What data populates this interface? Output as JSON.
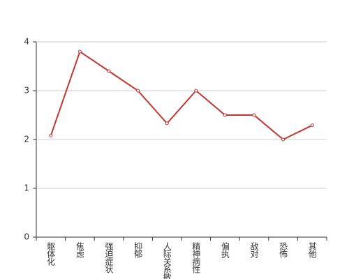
{
  "chart_data": {
    "type": "line",
    "categories": [
      "躯体化",
      "焦虑",
      "强迫症状",
      "抑郁",
      "人际关系敏感",
      "精神病性",
      "偏执",
      "敌对",
      "恐怖",
      "其他"
    ],
    "series": [
      {
        "color": "#c23531",
        "values": [
          2.08,
          3.8,
          3.4,
          3.0,
          2.33,
          3.0,
          2.5,
          2.5,
          2.0,
          2.29
        ]
      }
    ],
    "ylim": [
      0,
      4
    ],
    "yticks": [
      0,
      1,
      2,
      3,
      4
    ],
    "grid": true
  }
}
